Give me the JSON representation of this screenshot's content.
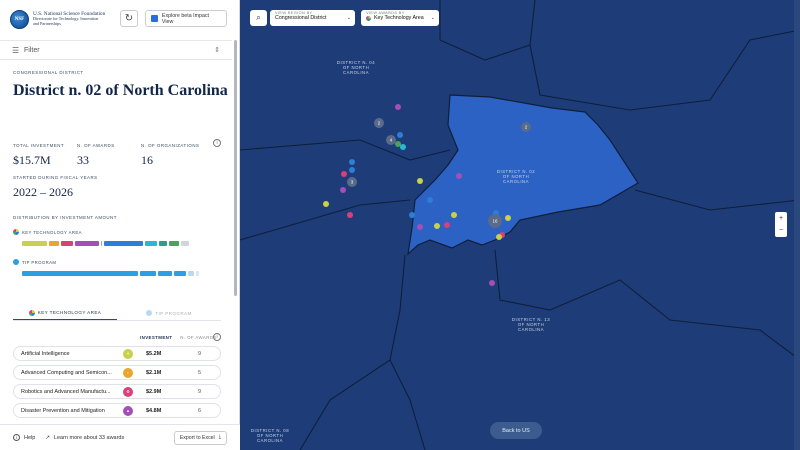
{
  "header": {
    "org_line1": "U.S. National Science Foundation",
    "org_line2": "Directorate for Technology, Innovation",
    "org_line3": "and Partnerships",
    "seal_text": "NSF",
    "beta_button": "Explore beta Impact View"
  },
  "filter": {
    "label": "Filter"
  },
  "district": {
    "caption": "Congressional District",
    "title": "District n. 02 of North Carolina",
    "stats": [
      {
        "label": "Total Investment",
        "value": "$15.7M"
      },
      {
        "label": "N. of Awards",
        "value": "33"
      },
      {
        "label": "N. of Organizations",
        "value": "16"
      }
    ],
    "fiscal_label": "Started during fiscal years",
    "fiscal_value": "2022 – 2026",
    "distribution_label": "Distribution by investment amount",
    "kta_label": "Key Technology Area",
    "tip_label": "TIP Program"
  },
  "kta_segments": [
    {
      "color": "#c9d04a",
      "share": 0.15
    },
    {
      "color": "#e8a62a",
      "share": 0.06
    },
    {
      "color": "#d8407a",
      "share": 0.07
    },
    {
      "color": "#a34fb7",
      "share": 0.14
    },
    {
      "color": "#9aa4b0",
      "share": 0.01
    },
    {
      "color": "#2c7fd4",
      "share": 0.23
    },
    {
      "color": "#2ab7d6",
      "share": 0.07
    },
    {
      "color": "#2a9e8a",
      "share": 0.05
    },
    {
      "color": "#4aa35a",
      "share": 0.06
    },
    {
      "color": "#cfd6de",
      "share": 0.05
    }
  ],
  "tip_segments": [
    {
      "color": "#2c9fe3",
      "share": 0.66
    },
    {
      "color": "#2c9fe3",
      "share": 0.09
    },
    {
      "color": "#2c9fe3",
      "share": 0.08
    },
    {
      "color": "#2c9fe3",
      "share": 0.07
    },
    {
      "color": "#bcd8f0",
      "share": 0.03
    },
    {
      "color": "#d7e7f5",
      "share": 0.02
    }
  ],
  "tabs": [
    {
      "label": "Key Technology Area",
      "active": true
    },
    {
      "label": "TIP Program",
      "active": false
    }
  ],
  "table": {
    "col_investment": "Investment",
    "col_awards": "N. of Awards",
    "rows": [
      {
        "name": "Artificial Intelligence",
        "color": "#c9d04a",
        "investment": "$5.2M",
        "awards": "9"
      },
      {
        "name": "Advanced Computing and Semicon...",
        "color": "#e8a62a",
        "investment": "$2.1M",
        "awards": "5"
      },
      {
        "name": "Robotics and Advanced Manufactu...",
        "color": "#d8407a",
        "investment": "$2.9M",
        "awards": "9"
      },
      {
        "name": "Disaster Prevention and Mitigation",
        "color": "#a34fb7",
        "investment": "$4.8M",
        "awards": "6"
      }
    ]
  },
  "footer": {
    "help": "Help",
    "learn": "Learn more about 33 awards",
    "export": "Export to Excel"
  },
  "map": {
    "view_region_label": "View region by",
    "view_region_value": "Congressional District",
    "view_awards_label": "View awards by",
    "view_awards_value": "Key Technology Area",
    "labels": {
      "d04": "District n. 04 of North Carolina",
      "d02": "District n. 02 of North Carolina",
      "d13": "District n. 13 of North Carolina",
      "d08": "District n. 08 of North Carolina"
    },
    "clusters": [
      "2",
      "2",
      "4",
      "3",
      "16"
    ],
    "back_button": "Back to US",
    "highlight_color": "#2b62c4",
    "base_color": "#1e3d78"
  }
}
